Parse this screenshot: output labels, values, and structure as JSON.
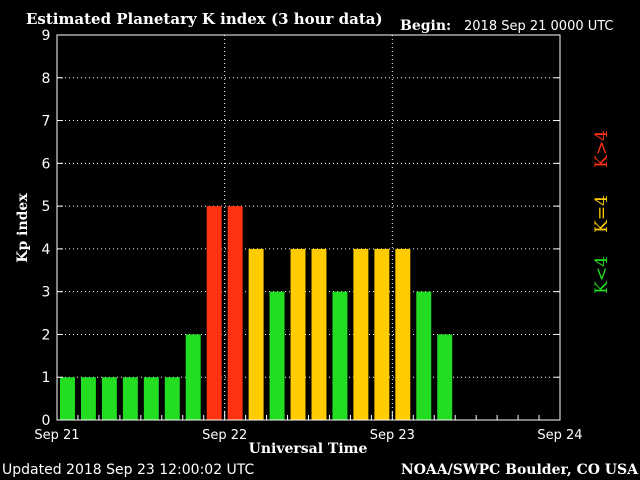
{
  "chart_data": {
    "type": "bar",
    "title": "Estimated Planetary K index (3 hour data)",
    "begin_label": "Begin:",
    "begin_value": "2018 Sep 21 0000 UTC",
    "xlabel": "Universal Time",
    "ylabel": "Kp index",
    "ylim": [
      0,
      9
    ],
    "yticks": [
      "0",
      "1",
      "2",
      "3",
      "4",
      "5",
      "6",
      "7",
      "8",
      "9"
    ],
    "xlim_days": [
      0,
      3
    ],
    "xticks": [
      {
        "day": 0,
        "label": "Sep 21"
      },
      {
        "day": 1,
        "label": "Sep 22"
      },
      {
        "day": 2,
        "label": "Sep 23"
      },
      {
        "day": 3,
        "label": "Sep 24"
      }
    ],
    "interval_hours": 3,
    "values": [
      1,
      1,
      1,
      1,
      1,
      1,
      2,
      5,
      5,
      4,
      3,
      4,
      4,
      3,
      4,
      4,
      4,
      3,
      2
    ],
    "grid": true,
    "colors": {
      "below": "#22dd22",
      "equal": "#ffcc00",
      "above": "#ff3311",
      "grid": "#ffffff",
      "text": "#ffffff"
    },
    "legend": [
      {
        "label": "K<4",
        "color": "#22dd22"
      },
      {
        "label": "K=4",
        "color": "#ffcc00"
      },
      {
        "label": "K>4",
        "color": "#ff3311"
      }
    ],
    "footer_left": "Updated 2018 Sep 23 12:00:02 UTC",
    "footer_right": "NOAA/SWPC Boulder, CO USA"
  }
}
